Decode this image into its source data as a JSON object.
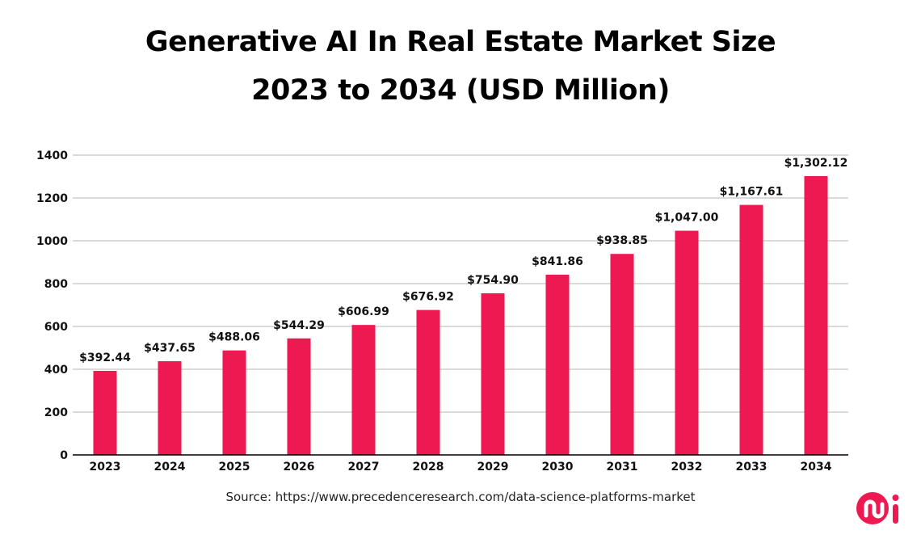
{
  "chart_data": {
    "type": "bar",
    "title": "Generative AI In Real Estate Market Size",
    "subtitle": "2023 to 2034 (USD Million)",
    "categories": [
      "2023",
      "2024",
      "2025",
      "2026",
      "2027",
      "2028",
      "2029",
      "2030",
      "2031",
      "2032",
      "2033",
      "2034"
    ],
    "values": [
      392.44,
      437.65,
      488.06,
      544.29,
      606.99,
      676.92,
      754.9,
      841.86,
      938.85,
      1047.0,
      1167.61,
      1302.12
    ],
    "data_labels": [
      "$392.44",
      "$437.65",
      "$488.06",
      "$544.29",
      "$606.99",
      "$676.92",
      "$754.90",
      "$841.86",
      "$938.85",
      "$1,047.00",
      "$1,167.61",
      "$1,302.12"
    ],
    "yticks": [
      "0",
      "200",
      "400",
      "600",
      "800",
      "1000",
      "1200",
      "1400"
    ],
    "ylim": [
      0,
      1400
    ],
    "xlabel": "",
    "ylabel": "",
    "grid": true,
    "bar_color": "#ED1A52"
  },
  "source": "Source: https://www.precedenceresearch.com/data-science-platforms-market",
  "logo_text": "mi",
  "logo_color": "#ED1A52"
}
